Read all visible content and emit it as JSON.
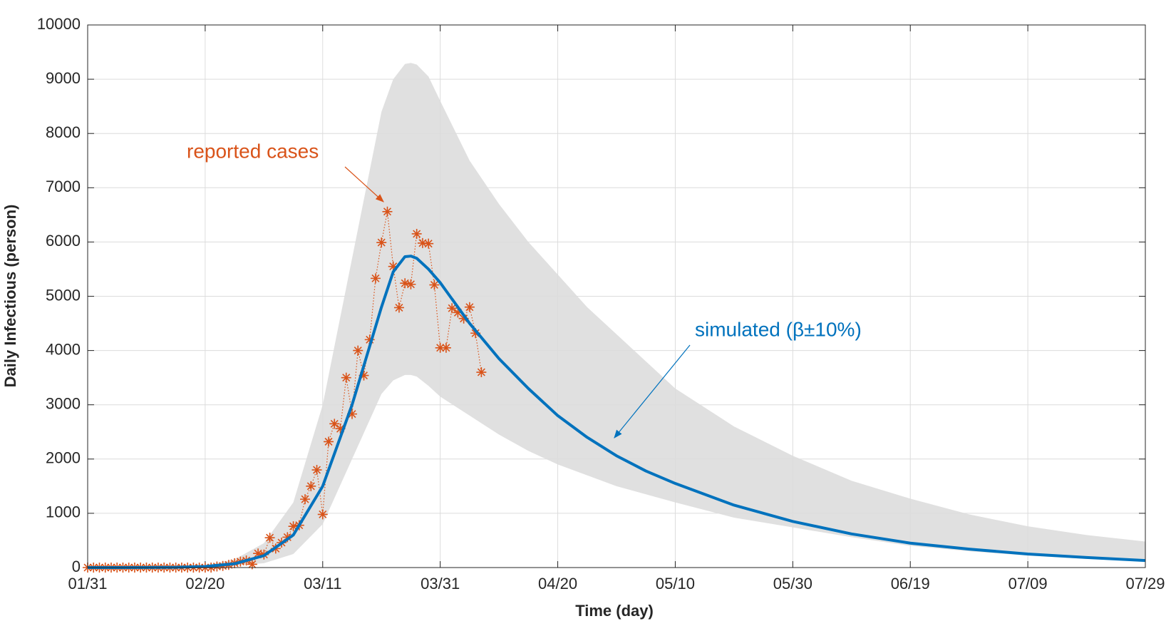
{
  "chart_data": {
    "type": "line",
    "xlabel": "Time (day)",
    "ylabel": "Daily Infectious (person)",
    "annotations": [
      "reported cases",
      "simulated (β±10%)"
    ],
    "xlim": [
      0,
      180
    ],
    "xticks": [
      {
        "value": 0,
        "label": "01/31"
      },
      {
        "value": 20,
        "label": "02/20"
      },
      {
        "value": 40,
        "label": "03/11"
      },
      {
        "value": 60,
        "label": "03/31"
      },
      {
        "value": 80,
        "label": "04/20"
      },
      {
        "value": 100,
        "label": "05/10"
      },
      {
        "value": 120,
        "label": "05/30"
      },
      {
        "value": 140,
        "label": "06/19"
      },
      {
        "value": 160,
        "label": "07/09"
      },
      {
        "value": 180,
        "label": "07/29"
      }
    ],
    "ylim": [
      0,
      10000
    ],
    "yticks": [
      0,
      1000,
      2000,
      3000,
      4000,
      5000,
      6000,
      7000,
      8000,
      9000,
      10000
    ],
    "grid": true,
    "series": [
      {
        "color": "#d95319",
        "x": [
          0,
          1,
          2,
          3,
          4,
          5,
          6,
          7,
          8,
          9,
          10,
          11,
          12,
          13,
          14,
          15,
          16,
          17,
          18,
          19,
          20,
          21,
          22,
          23,
          24,
          25,
          26,
          27,
          28,
          29,
          30,
          31,
          32,
          33,
          34,
          35,
          36,
          37,
          38,
          39,
          40,
          41,
          42,
          43,
          44,
          45,
          46,
          47,
          48,
          49,
          50,
          51,
          52,
          53,
          54,
          55,
          56,
          57,
          58,
          59,
          60,
          61,
          62,
          63,
          64,
          65,
          66,
          67
        ],
        "values": [
          0,
          0,
          0,
          0,
          0,
          0,
          0,
          0,
          0,
          0,
          0,
          0,
          0,
          0,
          0,
          0,
          0,
          0,
          0,
          0,
          0,
          0,
          20,
          30,
          50,
          80,
          110,
          130,
          60,
          260,
          240,
          550,
          350,
          460,
          560,
          760,
          780,
          1260,
          1500,
          1800,
          980,
          2320,
          2650,
          2560,
          3500,
          2830,
          4000,
          3540,
          4200,
          5330,
          5990,
          6560,
          5550,
          4790,
          5240,
          5220,
          6150,
          5980,
          5970,
          5210,
          4050,
          4050,
          4780,
          4700,
          4590,
          4800,
          4320,
          3600
        ]
      },
      {
        "color": "#0072bd",
        "band_color": "#e0e0e0",
        "x": [
          0,
          5,
          10,
          15,
          20,
          25,
          30,
          35,
          40,
          45,
          50,
          52,
          54,
          55,
          56,
          58,
          60,
          65,
          70,
          75,
          80,
          85,
          90,
          95,
          100,
          110,
          120,
          130,
          140,
          150,
          160,
          170,
          180
        ],
        "values": [
          0,
          0,
          2,
          5,
          20,
          70,
          220,
          600,
          1500,
          3000,
          4800,
          5450,
          5730,
          5740,
          5700,
          5500,
          5250,
          4500,
          3850,
          3300,
          2800,
          2400,
          2060,
          1780,
          1550,
          1150,
          850,
          620,
          450,
          340,
          250,
          185,
          130
        ],
        "upper": [
          0,
          0,
          3,
          10,
          40,
          150,
          450,
          1200,
          3000,
          5700,
          8400,
          9000,
          9280,
          9300,
          9270,
          9050,
          8600,
          7500,
          6700,
          6000,
          5400,
          4800,
          4300,
          3800,
          3300,
          2600,
          2060,
          1600,
          1270,
          980,
          760,
          600,
          480
        ],
        "lower": [
          0,
          0,
          1,
          3,
          10,
          35,
          80,
          250,
          800,
          2000,
          3200,
          3450,
          3550,
          3550,
          3520,
          3350,
          3150,
          2800,
          2450,
          2150,
          1900,
          1700,
          1500,
          1350,
          1200,
          920,
          740,
          560,
          400,
          300,
          220,
          160,
          120
        ]
      }
    ]
  }
}
